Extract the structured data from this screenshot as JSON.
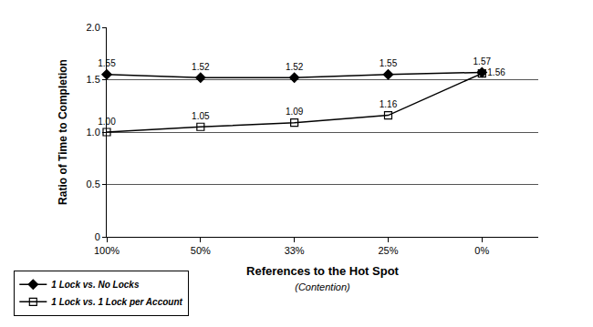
{
  "chart_data": {
    "type": "line",
    "categories": [
      "100%",
      "50%",
      "33%",
      "25%",
      "0%"
    ],
    "x_label": "References to the Hot Spot",
    "annotations": [
      "(Contention)"
    ],
    "y_label": "Ratio of Time to Completion",
    "ylim": [
      0,
      2
    ],
    "yticks": [
      0,
      0.5,
      {
        "value": 1,
        "label": "1.0"
      },
      1.5,
      {
        "value": 2,
        "label": "2.0"
      }
    ],
    "grid": true,
    "legend": "bottom left",
    "data_labels": true,
    "series": [
      {
        "name": "1 Lock vs. No Locks",
        "color": "#000000",
        "marker": "diamond",
        "line_style": "solid",
        "values": [
          1.55,
          1.52,
          1.52,
          1.55,
          1.57
        ],
        "value_labels": [
          "1.55",
          "1.52",
          "1.52",
          "1.55",
          "1.57"
        ]
      },
      {
        "name": "1 Lock vs. 1 Lock per Account",
        "color": "#000000",
        "marker": "square-open",
        "line_style": "solid",
        "values": [
          1.0,
          1.05,
          1.09,
          1.16,
          1.56
        ],
        "value_labels": [
          "1.00",
          "1.05",
          "1.09",
          "1.16",
          "1.56"
        ]
      }
    ]
  }
}
